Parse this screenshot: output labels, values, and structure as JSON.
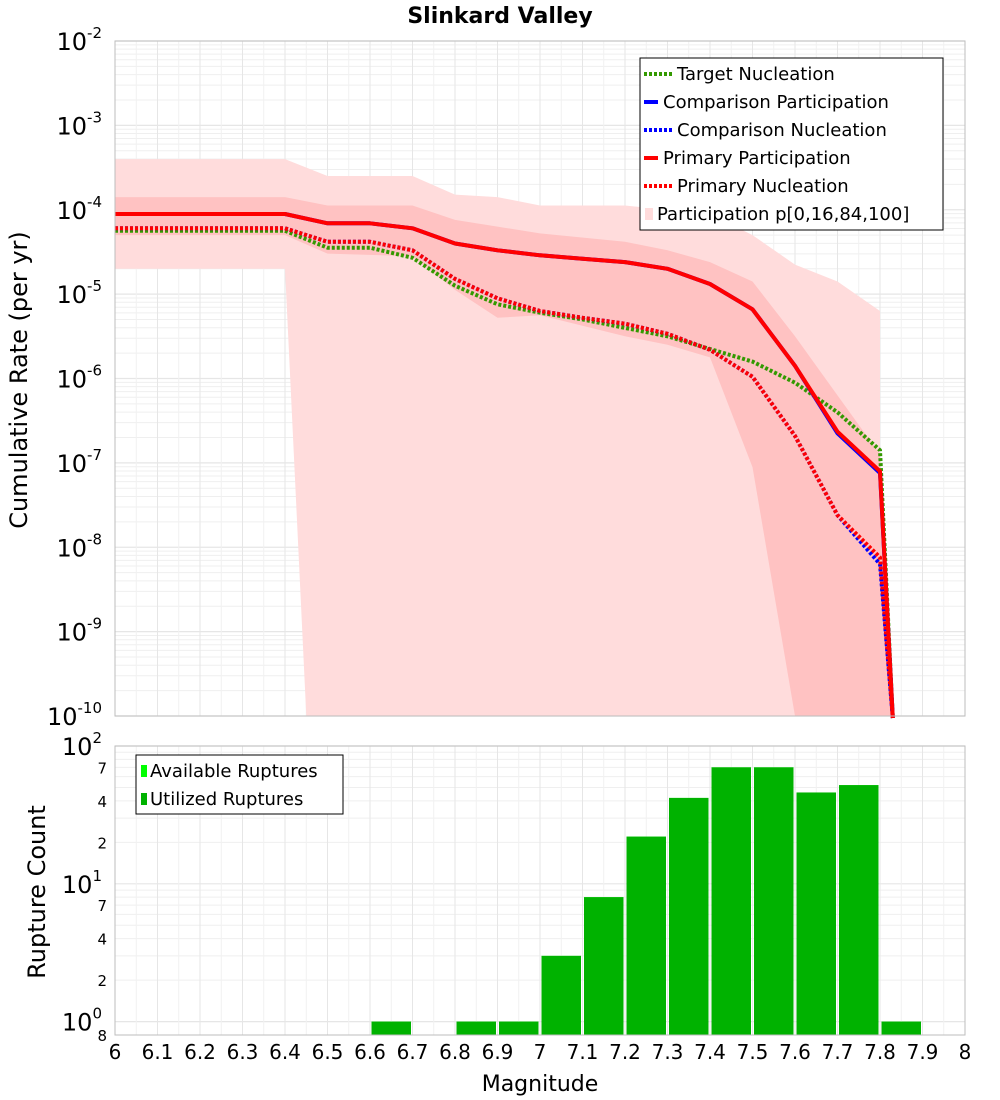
{
  "colors": {
    "target_nucleation": "#339900",
    "comparison": "#0000ff",
    "primary": "#ff0000",
    "band_outer": "#ffdcdc",
    "band_inner": "#ffc2c2",
    "available": "#00ff00",
    "utilized": "#00b200",
    "grid": "#e6e6e6"
  },
  "chart_data": [
    {
      "type": "line",
      "title": "Slinkard Valley",
      "xlabel": "",
      "ylabel": "Cumulative Rate (per yr)",
      "xlim": [
        6,
        8
      ],
      "ylim_log10": [
        -10,
        -2
      ],
      "yscale": "log",
      "y_ticks": [
        {
          "base": "10",
          "exp": "-2",
          "log": -2
        },
        {
          "base": "10",
          "exp": "-3",
          "log": -3
        },
        {
          "base": "10",
          "exp": "-4",
          "log": -4
        },
        {
          "base": "10",
          "exp": "-5",
          "log": -5
        },
        {
          "base": "10",
          "exp": "-6",
          "log": -6
        },
        {
          "base": "10",
          "exp": "-7",
          "log": -7
        },
        {
          "base": "10",
          "exp": "-8",
          "log": -8
        },
        {
          "base": "10",
          "exp": "-9",
          "log": -9
        },
        {
          "base": "10",
          "exp": "-10",
          "log": -10
        }
      ],
      "x": [
        6.0,
        6.1,
        6.2,
        6.3,
        6.4,
        6.5,
        6.6,
        6.7,
        6.8,
        6.9,
        7.0,
        7.1,
        7.2,
        7.3,
        7.4,
        7.5,
        7.6,
        7.7,
        7.8,
        7.83
      ],
      "series": [
        {
          "name": "Target Nucleation",
          "style": "dotted",
          "color_key": "target_nucleation",
          "values_log10": [
            -4.25,
            -4.25,
            -4.25,
            -4.25,
            -4.25,
            -4.45,
            -4.45,
            -4.57,
            -4.9,
            -5.12,
            -5.22,
            -5.3,
            -5.4,
            -5.5,
            -5.65,
            -5.8,
            -6.05,
            -6.4,
            -6.85,
            -10.2
          ]
        },
        {
          "name": "Comparison Participation",
          "style": "solid",
          "color_key": "comparison",
          "values_log10": [
            -4.05,
            -4.05,
            -4.05,
            -4.05,
            -4.05,
            -4.16,
            -4.16,
            -4.22,
            -4.4,
            -4.48,
            -4.54,
            -4.58,
            -4.62,
            -4.7,
            -4.88,
            -5.18,
            -5.85,
            -6.65,
            -7.12,
            -10.2
          ]
        },
        {
          "name": "Comparison Nucleation",
          "style": "dotted",
          "color_key": "comparison",
          "values_log10": [
            -4.22,
            -4.22,
            -4.22,
            -4.22,
            -4.22,
            -4.38,
            -4.38,
            -4.48,
            -4.82,
            -5.05,
            -5.2,
            -5.28,
            -5.35,
            -5.47,
            -5.66,
            -5.98,
            -6.68,
            -7.62,
            -8.2,
            -10.2
          ]
        },
        {
          "name": "Primary Participation",
          "style": "solid",
          "color_key": "primary",
          "values_log10": [
            -4.05,
            -4.05,
            -4.05,
            -4.05,
            -4.05,
            -4.16,
            -4.16,
            -4.22,
            -4.4,
            -4.48,
            -4.54,
            -4.58,
            -4.62,
            -4.7,
            -4.88,
            -5.18,
            -5.85,
            -6.63,
            -7.1,
            -10.2
          ]
        },
        {
          "name": "Primary Nucleation",
          "style": "dotted",
          "color_key": "primary",
          "values_log10": [
            -4.22,
            -4.22,
            -4.22,
            -4.22,
            -4.22,
            -4.38,
            -4.38,
            -4.48,
            -4.82,
            -5.05,
            -5.2,
            -5.28,
            -5.35,
            -5.47,
            -5.66,
            -5.98,
            -6.68,
            -7.62,
            -8.12,
            -10.2
          ]
        }
      ],
      "bands": [
        {
          "name": "Participation p[0,16,84,100]",
          "kind": "outer",
          "x": [
            6.0,
            6.4,
            6.5,
            6.7,
            6.8,
            6.9,
            7.0,
            7.2,
            7.4,
            7.5,
            7.6,
            7.7,
            7.8
          ],
          "upper_log10": [
            -3.4,
            -3.4,
            -3.6,
            -3.6,
            -3.82,
            -3.85,
            -3.95,
            -3.95,
            -4.05,
            -4.3,
            -4.65,
            -4.85,
            -5.2
          ],
          "lower_x": [
            7.8,
            7.5,
            7.4,
            6.45,
            6.4,
            6.0
          ],
          "lower_log10": [
            -10,
            -10,
            -10,
            -10,
            -4.7,
            -4.7
          ]
        },
        {
          "name": "Participation inner",
          "kind": "inner",
          "x": [
            6.0,
            6.4,
            6.5,
            6.7,
            6.8,
            6.9,
            7.0,
            7.2,
            7.3,
            7.4,
            7.5,
            7.6,
            7.7,
            7.8,
            7.83
          ],
          "upper_log10": [
            -3.85,
            -3.85,
            -3.95,
            -3.95,
            -4.12,
            -4.2,
            -4.28,
            -4.38,
            -4.48,
            -4.62,
            -4.85,
            -5.5,
            -6.2,
            -6.9,
            -10.1
          ],
          "lower_x": [
            7.83,
            7.6,
            7.5,
            7.4,
            7.3,
            7.2,
            7.0,
            6.9,
            6.8,
            6.7,
            6.5,
            6.4,
            6.0
          ],
          "lower_log10": [
            -10,
            -10,
            -7.05,
            -5.75,
            -5.6,
            -5.5,
            -5.25,
            -5.28,
            -4.95,
            -4.55,
            -4.52,
            -4.3,
            -4.3
          ]
        }
      ],
      "legend": [
        {
          "label": "Target Nucleation",
          "style": "dotted",
          "color_key": "target_nucleation"
        },
        {
          "label": "Comparison Participation",
          "style": "solid",
          "color_key": "comparison"
        },
        {
          "label": "Comparison Nucleation",
          "style": "dotted",
          "color_key": "comparison"
        },
        {
          "label": "Primary Participation",
          "style": "solid",
          "color_key": "primary"
        },
        {
          "label": "Primary Nucleation",
          "style": "dotted",
          "color_key": "primary"
        },
        {
          "label": "Participation p[0,16,84,100]",
          "style": "box",
          "color_key": "band_outer"
        }
      ],
      "legend_position": "top-right"
    },
    {
      "type": "bar",
      "title": "",
      "xlabel": "Magnitude",
      "ylabel": "Rupture Count",
      "xlim": [
        6,
        8
      ],
      "yscale": "log",
      "ylim_log10": [
        -0.0969,
        2
      ],
      "x_tick_labels": [
        "6",
        "6.1",
        "6.2",
        "6.3",
        "6.4",
        "6.5",
        "6.6",
        "6.7",
        "6.8",
        "6.9",
        "7",
        "7.1",
        "7.2",
        "7.3",
        "7.4",
        "7.5",
        "7.6",
        "7.7",
        "7.8",
        "7.9",
        "8"
      ],
      "y_major_ticks": [
        {
          "base": "10",
          "exp": "2",
          "log": 2
        },
        {
          "base": "10",
          "exp": "1",
          "log": 1
        },
        {
          "base": "10",
          "exp": "0",
          "log": 0
        }
      ],
      "y_minor_ticks": [
        {
          "label": "7",
          "value": 70
        },
        {
          "label": "4",
          "value": 40
        },
        {
          "label": "2",
          "value": 20
        },
        {
          "label": "7",
          "value": 7
        },
        {
          "label": "4",
          "value": 4
        },
        {
          "label": "2",
          "value": 2
        },
        {
          "label": "8",
          "value": 0.8
        }
      ],
      "bins_center": [
        6.65,
        6.85,
        6.95,
        7.05,
        7.15,
        7.25,
        7.35,
        7.45,
        7.55,
        7.65,
        7.75,
        7.85
      ],
      "bin_width": 0.1,
      "series": [
        {
          "name": "Available Ruptures",
          "color_key": "available",
          "values": [
            1,
            1,
            1,
            3,
            8,
            22,
            42,
            70,
            70,
            46,
            52,
            1
          ]
        },
        {
          "name": "Utilized Ruptures",
          "color_key": "utilized",
          "values": [
            1,
            1,
            1,
            3,
            8,
            22,
            42,
            70,
            70,
            46,
            52,
            1
          ]
        }
      ],
      "legend": [
        {
          "label": "Available Ruptures",
          "color_key": "available"
        },
        {
          "label": "Utilized Ruptures",
          "color_key": "utilized"
        }
      ],
      "legend_position": "top-left"
    }
  ]
}
